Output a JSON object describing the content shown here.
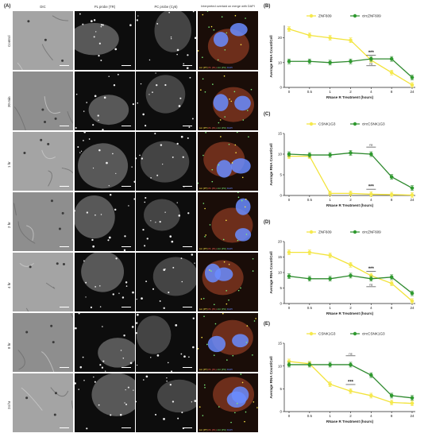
{
  "panel_labels": {
    "a": "(A)",
    "b": "(B)",
    "c": "(C)",
    "d": "(D)",
    "e": "(E)"
  },
  "column_headers": [
    "DIC",
    "PL probe (TR)",
    "PC probe (Cy5)",
    "Interpreted overlaid on merge with DAPI"
  ],
  "rows": [
    {
      "label": "Control"
    },
    {
      "label": "30 min"
    },
    {
      "label": "1 hr"
    },
    {
      "label": "2 hr"
    },
    {
      "label": "4 hr"
    },
    {
      "label": "8 hr"
    },
    {
      "label": "24 hr"
    }
  ],
  "merge_caption_parts": [
    "Lin (PT)",
    "PL (PL)",
    "circ (PC)",
    "DAPI"
  ],
  "colors": {
    "linear_line": "#f2e33a",
    "linear_marker": "#f5e94d",
    "circular_line": "#2f8a2f",
    "circular_marker": "#2f9a2f",
    "merge_green": "#7cf07c",
    "merge_red": "#ff6a5a",
    "merge_blue": "#6a8cff"
  },
  "chart_data": [
    {
      "panel": "(B)",
      "type": "line",
      "xlabel": "RNase R Treatment (hours)",
      "ylabel": "Average RNA Count/Cell",
      "categories": [
        "0",
        "0.5",
        "1",
        "2",
        "4",
        "8",
        "24"
      ],
      "ylim": [
        0,
        25
      ],
      "yticks": [
        0,
        10,
        20
      ],
      "series": [
        {
          "name": "ZNF609",
          "role": "linear",
          "values": [
            23.5,
            21,
            20,
            19,
            11,
            6,
            1
          ]
        },
        {
          "name": "circZNF609",
          "role": "circular",
          "values": [
            10.5,
            10.5,
            10,
            10.5,
            11.5,
            11.5,
            4
          ]
        }
      ],
      "annotations": [
        {
          "text": "***",
          "x": "4",
          "y": 13.5
        },
        {
          "text": "ns",
          "x": "4",
          "y": 9.2
        }
      ]
    },
    {
      "panel": "(C)",
      "type": "line",
      "xlabel": "RNase R Treatment (hours)",
      "ylabel": "Average RNA Count/Cell",
      "categories": [
        "0",
        "0.5",
        "1",
        "2",
        "4",
        "8",
        "24"
      ],
      "ylim": [
        0,
        15
      ],
      "yticks": [
        0,
        5,
        10,
        15
      ],
      "series": [
        {
          "name": "CSNK1G3",
          "role": "linear",
          "values": [
            9.5,
            9.5,
            0.5,
            0.5,
            0.3,
            0.2,
            0.1
          ]
        },
        {
          "name": "circCSNK1G3",
          "role": "circular",
          "values": [
            10,
            9.8,
            9.8,
            10.3,
            10,
            4.5,
            1.8
          ]
        }
      ],
      "annotations": [
        {
          "text": "ns",
          "x": "4",
          "y": 12
        },
        {
          "text": "***",
          "x": "4",
          "y": 1.8
        }
      ]
    },
    {
      "panel": "(D)",
      "type": "line",
      "xlabel": "RNase R Treatment (hours)",
      "ylabel": "Average RNA Count/Cell",
      "categories": [
        "0",
        "0.5",
        "1",
        "2",
        "4",
        "8",
        "24"
      ],
      "ylim": [
        0,
        20
      ],
      "yticks": [
        0,
        5,
        10,
        15,
        20
      ],
      "series": [
        {
          "name": "ZNF609",
          "role": "linear",
          "values": [
            16.5,
            16.5,
            15.5,
            12.5,
            9,
            6.5,
            0.8
          ]
        },
        {
          "name": "circZNF609",
          "role": "circular",
          "values": [
            8.8,
            8,
            8,
            9,
            8,
            8.5,
            3.3
          ]
        }
      ],
      "annotations": [
        {
          "text": "***",
          "x": "4",
          "y": 10.8
        },
        {
          "text": "ns",
          "x": "4",
          "y": 5.8
        }
      ]
    },
    {
      "panel": "(E)",
      "type": "line",
      "xlabel": "RNase R Treatment (hours)",
      "ylabel": "Average RNA Count/Cell",
      "categories": [
        "0",
        "0.5",
        "1",
        "2",
        "4",
        "8",
        "24"
      ],
      "ylim": [
        0,
        15
      ],
      "yticks": [
        0,
        5,
        10,
        15
      ],
      "series": [
        {
          "name": "CSNK1G3",
          "role": "linear",
          "values": [
            11,
            10.5,
            6,
            4.5,
            3.5,
            2,
            1.8
          ]
        },
        {
          "name": "circCSNK1G3",
          "role": "circular",
          "values": [
            10.3,
            10.3,
            10.3,
            10.3,
            8,
            3.5,
            3
          ]
        }
      ],
      "annotations": [
        {
          "text": "ns",
          "x": "2",
          "y": 12.5
        },
        {
          "text": "***",
          "x": "2",
          "y": 6.2
        }
      ]
    }
  ]
}
